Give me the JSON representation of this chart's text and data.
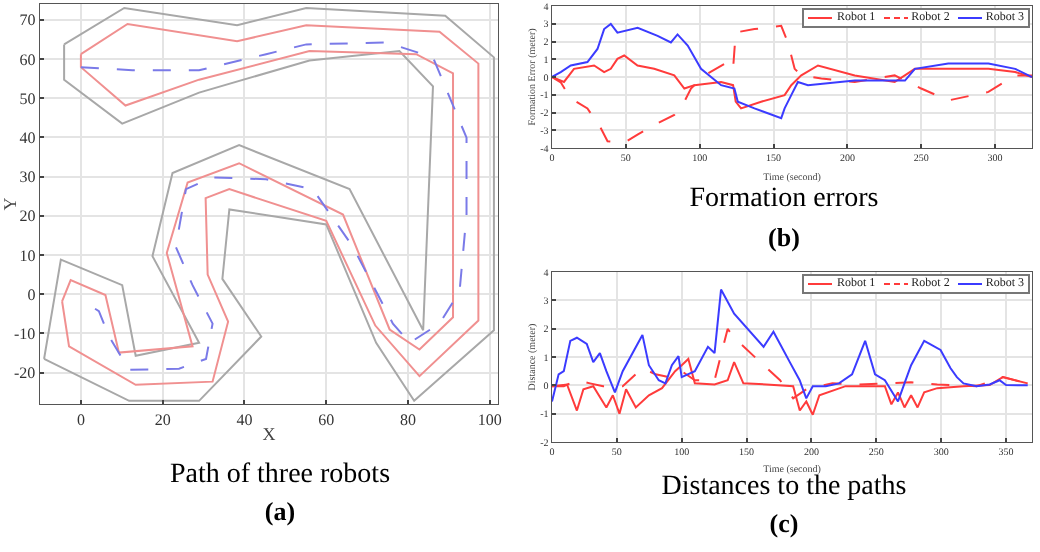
{
  "chart_data": [
    {
      "type": "line",
      "title": "Path of three robots",
      "subtitle": "(a)",
      "xlabel": "X",
      "ylabel": "Y",
      "xlim": [
        -10,
        102
      ],
      "ylim": [
        -28,
        74
      ],
      "xticks": [
        0,
        20,
        40,
        60,
        80,
        100
      ],
      "yticks": [
        -20,
        -10,
        0,
        10,
        20,
        30,
        40,
        50,
        60,
        70
      ],
      "grid": true,
      "legend": false,
      "series": [
        {
          "color": "#a8a8a8",
          "line_style": "solid",
          "x": [
            -4.1,
            10.6,
            38.2,
            55.1,
            89.1,
            101,
            101,
            81.5,
            72.2,
            60,
            36.3,
            34.6,
            44.1,
            28.9,
            11.8,
            -9
          ],
          "values": [
            63.7,
            73,
            68.6,
            73,
            71,
            60.4,
            -9.2,
            -27.2,
            -12.4,
            17.8,
            21.6,
            3.9,
            -10.8,
            -27.2,
            -27.2,
            -16.5
          ]
        },
        {
          "color": "#a8a8a8",
          "line_style": "solid",
          "x": [
            -9,
            -4.9,
            10.1,
            13.4,
            28.9,
            17.5,
            22.4,
            38.7,
            65.7,
            83.7,
            86.1,
            77.9,
            55.9,
            28.9,
            10.1,
            -4.1,
            -4.1
          ],
          "values": [
            -16.5,
            8.8,
            2.3,
            -15.7,
            -12.4,
            9.7,
            30.9,
            38,
            26.8,
            -9.2,
            53,
            62,
            59.6,
            51.4,
            43.5,
            54.7,
            63.7
          ]
        },
        {
          "color": "#f09090",
          "line_style": "solid",
          "x": [
            0,
            11.4,
            38.2,
            55.1,
            87.7,
            97.2,
            97.2,
            82.8,
            72,
            60,
            36.3,
            30.5,
            31,
            36,
            32.2,
            13.4,
            -2.9,
            -4.6
          ],
          "values": [
            61.2,
            68.9,
            64.5,
            68.6,
            66.9,
            58.8,
            -6.7,
            -20.9,
            -8,
            18.7,
            26.8,
            24.5,
            5,
            -7,
            -22.3,
            -23.1,
            -13.3,
            -1.8
          ]
        },
        {
          "color": "#f09090",
          "line_style": "solid",
          "x": [
            -4.6,
            -2.5,
            6,
            9.3,
            27.3,
            21,
            26.1,
            38.7,
            64.1,
            75.5,
            82.8,
            91,
            91,
            82,
            55.9,
            28.9,
            10.9,
            0,
            0
          ],
          "values": [
            -1.8,
            3.6,
            -0.2,
            -14.9,
            -13.3,
            10.5,
            28.5,
            33.4,
            20.3,
            -9,
            -14.1,
            -5.9,
            56.3,
            61.2,
            62,
            54.7,
            48.1,
            57.9,
            61.2
          ]
        },
        {
          "color": "#7a7ae8",
          "line_style": "dashed",
          "x": [
            0,
            12.6,
            28.9,
            45.3,
            55.1,
            74.7,
            86.1,
            94.3,
            94.3,
            92.6,
            87.7,
            80.4,
            76.3,
            66.5,
            56.7,
            45.3,
            32.2,
            25.7,
            23.2,
            27.3,
            32.2,
            30.6,
            24,
            11.8,
            6.9,
            4.4,
            2.5
          ],
          "values": [
            57.9,
            57.1,
            57.1,
            61.2,
            63.7,
            64.2,
            60.4,
            39.9,
            20.3,
            0.7,
            -7.5,
            -12.4,
            -7.5,
            12.1,
            26.8,
            29.3,
            29.8,
            26.8,
            12.1,
            2.3,
            -7.5,
            -16.5,
            -19,
            -19.3,
            -10.8,
            -4.3,
            -3.1
          ]
        }
      ]
    },
    {
      "type": "line",
      "title": "Formation errors",
      "subtitle": "(b)",
      "xlabel": "Time (second)",
      "ylabel": "Formation Error (meter)",
      "xlim": [
        0,
        325
      ],
      "ylim": [
        -4,
        4
      ],
      "xticks": [
        0,
        50,
        100,
        150,
        200,
        250,
        300
      ],
      "yticks": [
        -4,
        -3,
        -2,
        -1,
        0,
        1,
        2,
        3,
        4
      ],
      "grid": true,
      "legend": "top right",
      "series": [
        {
          "name": "Robot 1",
          "color": "#ff3b3b",
          "line_style": "solid",
          "x": [
            0,
            8.1,
            14.9,
            28.5,
            35.3,
            39.8,
            44.3,
            48.9,
            57.9,
            69.2,
            82.8,
            89.6,
            96.4,
            114.5,
            122.6,
            124.4,
            128,
            141.6,
            157.5,
            162,
            168.8,
            180.1,
            205,
            232,
            245.7,
            272.9,
            295.5,
            313.6,
            325
          ],
          "values": [
            0,
            -0.28,
            0.46,
            0.65,
            0.28,
            0.46,
            1.02,
            1.21,
            0.65,
            0.46,
            0.09,
            -0.65,
            -0.46,
            -0.28,
            -0.46,
            -1.39,
            -1.77,
            -1.39,
            -1.02,
            -0.46,
            0.09,
            0.65,
            0.09,
            -0.28,
            0.46,
            0.46,
            0.46,
            0.28,
            0
          ]
        },
        {
          "name": "Robot 2",
          "color": "#ff3b3b",
          "line_style": "dashed",
          "x": [
            0,
            5.9,
            12.7,
            24,
            33,
            37.6,
            48.9,
            57.9,
            69.2,
            82.8,
            89.6,
            94.1,
            103.2,
            119,
            122.6,
            124.4,
            137.1,
            155.2,
            159.7,
            164.3,
            168.8,
            182.4,
            205,
            232,
            250,
            268.3,
            295.5,
            313.6,
            325
          ],
          "values": [
            0,
            -0.3,
            -1.21,
            -1.77,
            -2.88,
            -3.62,
            -3.7,
            -3.25,
            -2.7,
            -2.14,
            -1.39,
            -0.65,
            0.09,
            0.84,
            0.46,
            2.51,
            2.7,
            2.88,
            1.95,
            0.46,
            0.09,
            -0.09,
            -0.28,
            0.09,
            -0.65,
            -1.32,
            -0.84,
            0.09,
            0.09
          ]
        },
        {
          "name": "Robot 3",
          "color": "#3b3bff",
          "line_style": "solid",
          "x": [
            0,
            5.9,
            12.7,
            24,
            30.8,
            35.3,
            39.8,
            44.3,
            58,
            71.5,
            80.5,
            85,
            91.9,
            100.9,
            114.5,
            123.5,
            125.8,
            137.1,
            155.2,
            157.5,
            162,
            166.5,
            173.3,
            205,
            239,
            245.7,
            268.3,
            295.5,
            313.6,
            325
          ],
          "values": [
            0,
            0.28,
            0.65,
            0.84,
            1.58,
            2.7,
            2.99,
            2.5,
            2.77,
            2.32,
            1.95,
            2.4,
            1.77,
            0.46,
            -0.46,
            -0.65,
            -1.39,
            -1.77,
            -2.32,
            -1.77,
            -1.02,
            -0.28,
            -0.46,
            -0.2,
            -0.2,
            0.46,
            0.76,
            0.76,
            0.46,
            0
          ]
        }
      ]
    },
    {
      "type": "line",
      "title": "Distances to the paths",
      "subtitle": "(c)",
      "xlabel": "Time (second)",
      "ylabel": "Distance (meter)",
      "xlim": [
        0,
        370
      ],
      "ylim": [
        -2,
        4
      ],
      "xticks": [
        0,
        50,
        100,
        150,
        200,
        250,
        300,
        350
      ],
      "yticks": [
        -2,
        -1,
        0,
        1,
        2,
        3,
        4
      ],
      "grid": true,
      "legend": "top right",
      "series": [
        {
          "name": "Robot 1",
          "color": "#ff3b3b",
          "line_style": "solid",
          "x": [
            0,
            11.6,
            19.2,
            24.2,
            31.8,
            41.9,
            46.9,
            52,
            57.1,
            64.6,
            74.7,
            84.8,
            94.9,
            100,
            105.1,
            110.1,
            125.3,
            135.4,
            140.4,
            147.5,
            165.2,
            185.9,
            191,
            196,
            201,
            206.1,
            226.3,
            256.6,
            261.6,
            266.7,
            271.7,
            276.8,
            281.8,
            286.9,
            297,
            317.2,
            337.4,
            347.5,
            366.7
          ],
          "values": [
            -0.03,
            0.03,
            -0.89,
            -0.14,
            -0.03,
            -0.78,
            -0.35,
            -1.0,
            -0.14,
            -0.78,
            -0.35,
            -0.1,
            0.5,
            0.71,
            0.93,
            0.07,
            0.03,
            0.18,
            0.82,
            0.07,
            0.03,
            -0.03,
            -0.89,
            -0.57,
            -1.04,
            -0.35,
            -0.03,
            -0.03,
            -0.67,
            -0.25,
            -0.78,
            -0.35,
            -0.78,
            -0.25,
            -0.1,
            -0.03,
            0.01,
            0.29,
            0.07
          ]
        },
        {
          "name": "Robot 2",
          "color": "#ff3b3b",
          "line_style": "dashed",
          "x": [
            0,
            9.1,
            19.2,
            29.3,
            39.4,
            54.5,
            69.7,
            74.7,
            79.8,
            89.9,
            100,
            110.1,
            125.3,
            135.4,
            140.4,
            163.1,
            175.8,
            185.9,
            196,
            216.2,
            236.4,
            256.6,
            276.8,
            297,
            327.3,
            347.5,
            366.7
          ],
          "values": [
            -0.03,
            -0.03,
            0.18,
            0.07,
            -0.03,
            -0.03,
            0.61,
            0.5,
            0.39,
            0.29,
            0.5,
            0.18,
            0.18,
            1.99,
            1.68,
            0.71,
            0.18,
            -0.46,
            -0.14,
            0.07,
            0.03,
            0.07,
            0.11,
            0.03,
            -0.03,
            0.29,
            0.07
          ]
        },
        {
          "name": "Robot 3",
          "color": "#3b3bff",
          "line_style": "solid",
          "x": [
            0,
            5.1,
            9.1,
            14.1,
            19.2,
            26.8,
            31.8,
            36.9,
            41.9,
            48.5,
            54.5,
            69.7,
            74.7,
            82.3,
            87.4,
            92.4,
            97.5,
            100,
            110.1,
            120.2,
            125.3,
            130.3,
            140.4,
            163.1,
            170.7,
            175.8,
            183.3,
            190.9,
            196,
            201,
            211.1,
            221.2,
            231.3,
            241.4,
            249,
            256.6,
            266.7,
            271.7,
            276.8,
            286.9,
            299.5,
            307.1,
            312.1,
            317.2,
            327.3,
            337.4,
            345,
            350,
            366.7
          ],
          "values": [
            -0.57,
            0.39,
            0.5,
            1.57,
            1.68,
            1.46,
            0.82,
            1.14,
            0.5,
            -0.25,
            0.5,
            1.78,
            0.71,
            0.18,
            0.07,
            0.71,
            1.03,
            0.29,
            0.5,
            1.36,
            1.14,
            3.38,
            2.53,
            1.36,
            1.89,
            1.46,
            0.82,
            0.18,
            -0.46,
            -0.03,
            -0.03,
            0.07,
            0.39,
            1.57,
            0.39,
            0.18,
            -0.57,
            0.07,
            0.71,
            1.57,
            1.25,
            0.61,
            0.29,
            0.07,
            -0.03,
            0.03,
            0.18,
            0.01,
            0
          ]
        }
      ]
    }
  ]
}
